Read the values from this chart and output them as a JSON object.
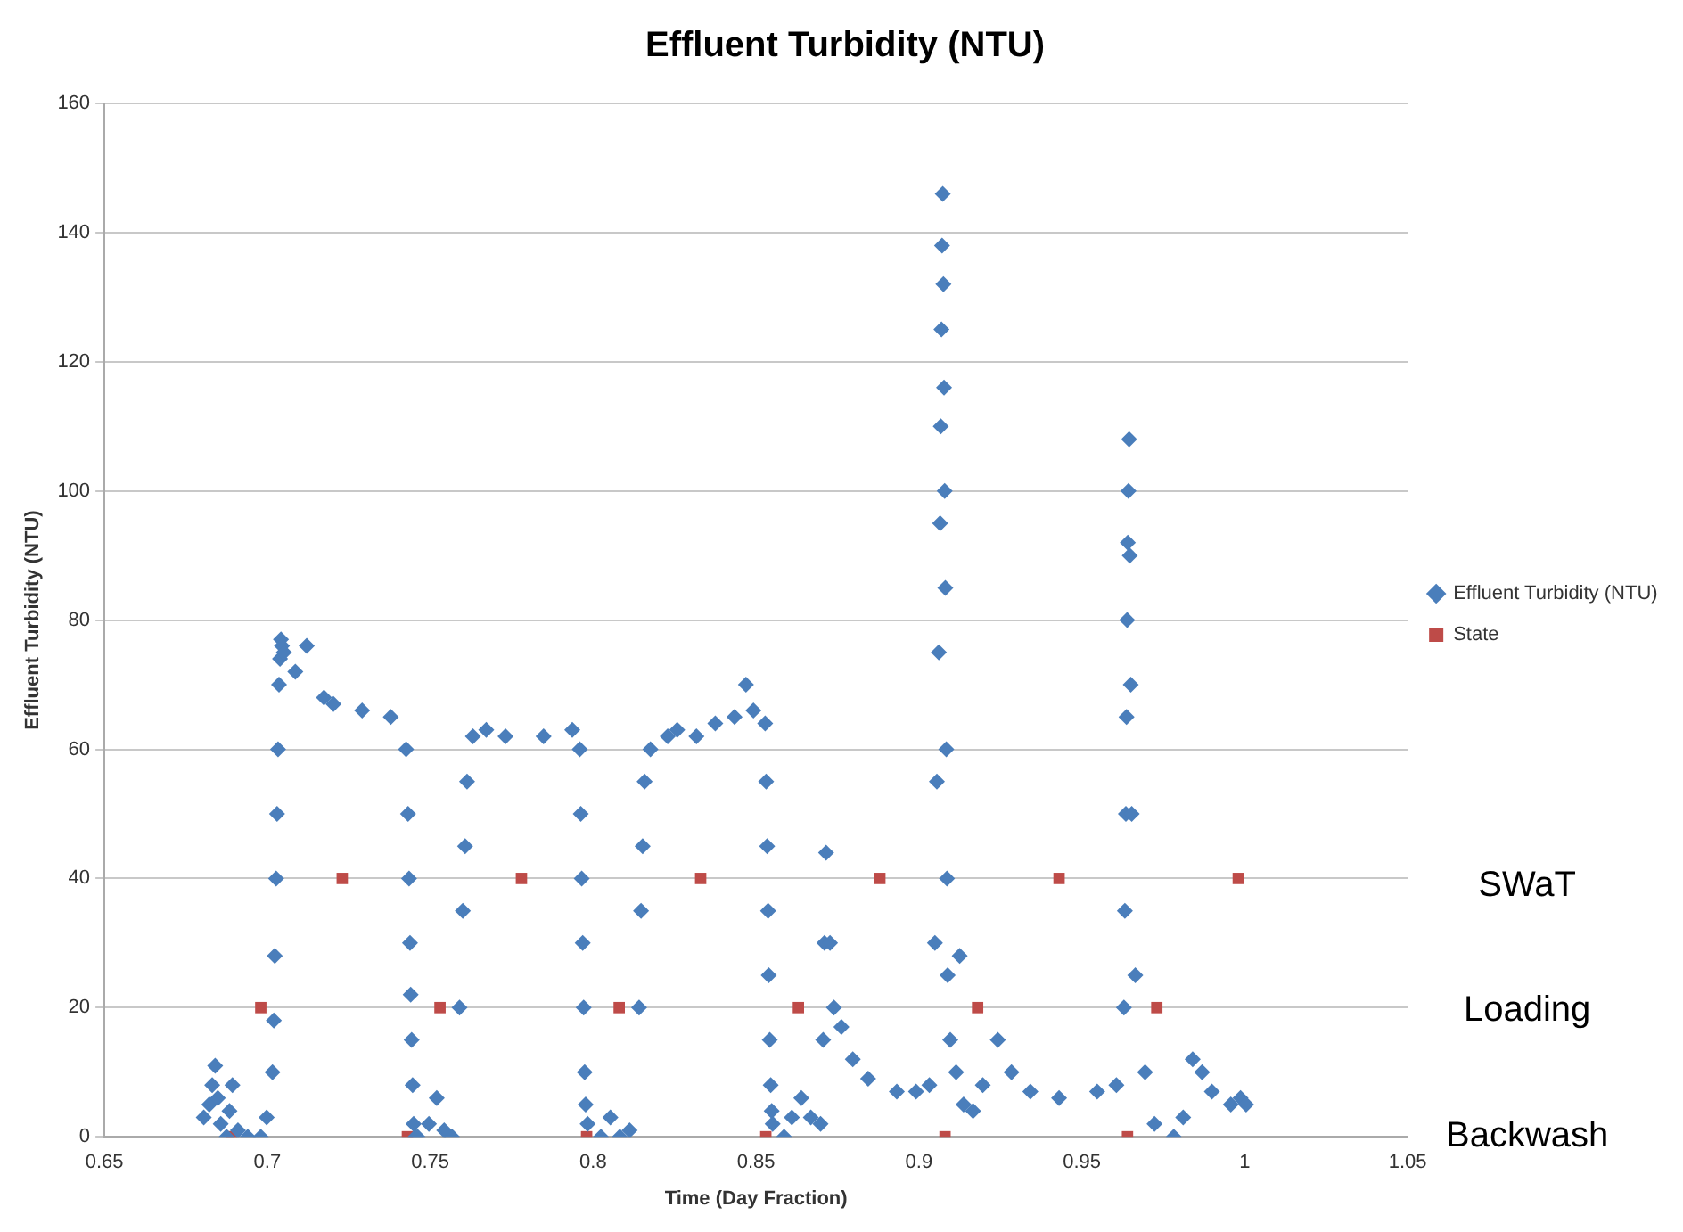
{
  "chart_data": {
    "type": "scatter",
    "title": "Effluent Turbidity (NTU)",
    "xlabel": "Time (Day Fraction)",
    "ylabel": "Effluent Turbidity (NTU)",
    "xlim": [
      0.65,
      1.05
    ],
    "xticks": [
      0.65,
      0.7,
      0.75,
      0.8,
      0.85,
      0.9,
      0.95,
      1,
      1.05
    ],
    "ylim": [
      0,
      160
    ],
    "yticks": [
      0,
      20,
      40,
      60,
      80,
      100,
      120,
      140,
      160
    ],
    "grid": "y",
    "legend": "right",
    "series": [
      {
        "name": "Effluent Turbidity (NTU)",
        "color": "#4a7ebb",
        "marker": "diamond",
        "x": [
          0.6805,
          0.6822,
          0.6831,
          0.684,
          0.6848,
          0.6857,
          0.6875,
          0.6884,
          0.6893,
          0.691,
          0.694,
          0.698,
          0.6998,
          0.7016,
          0.702,
          0.7023,
          0.7027,
          0.703,
          0.7033,
          0.7036,
          0.7039,
          0.7042,
          0.7045,
          0.7051,
          0.7086,
          0.7121,
          0.7174,
          0.7203,
          0.7291,
          0.7379,
          0.7426,
          0.7432,
          0.7435,
          0.7438,
          0.744,
          0.7443,
          0.7446,
          0.7449,
          0.7455,
          0.7461,
          0.7496,
          0.752,
          0.7543,
          0.7567,
          0.759,
          0.76,
          0.7607,
          0.7613,
          0.7631,
          0.7672,
          0.7731,
          0.7848,
          0.7936,
          0.7959,
          0.7962,
          0.7965,
          0.7968,
          0.7971,
          0.7974,
          0.7977,
          0.7983,
          0.8024,
          0.8053,
          0.8082,
          0.8112,
          0.8141,
          0.8147,
          0.8152,
          0.8158,
          0.8176,
          0.8229,
          0.8258,
          0.8317,
          0.8375,
          0.8434,
          0.8469,
          0.8492,
          0.8528,
          0.8531,
          0.8534,
          0.8537,
          0.8539,
          0.8542,
          0.8545,
          0.8548,
          0.8551,
          0.8586,
          0.861,
          0.8639,
          0.8668,
          0.8698,
          0.8706,
          0.871,
          0.8715,
          0.8727,
          0.8739,
          0.8762,
          0.8797,
          0.8844,
          0.8932,
          0.8991,
          0.9032,
          0.9049,
          0.9055,
          0.9061,
          0.9065,
          0.9067,
          0.9069,
          0.9071,
          0.9073,
          0.9075,
          0.9077,
          0.9079,
          0.9081,
          0.9084,
          0.9086,
          0.9088,
          0.9096,
          0.9114,
          0.9125,
          0.9137,
          0.9166,
          0.9196,
          0.9242,
          0.9284,
          0.9342,
          0.943,
          0.9547,
          0.9606,
          0.9629,
          0.9632,
          0.9635,
          0.9637,
          0.9639,
          0.9641,
          0.9643,
          0.9645,
          0.9647,
          0.965,
          0.9653,
          0.9664,
          0.9694,
          0.9723,
          0.9782,
          0.9811,
          0.984,
          0.9869,
          0.9899,
          0.9957,
          0.9987,
          1.0004
        ],
        "values": [
          3,
          5,
          8,
          11,
          6,
          2,
          0,
          4,
          8,
          1,
          0,
          0,
          3,
          10,
          18,
          28,
          40,
          50,
          60,
          70,
          74,
          77,
          76,
          75,
          72,
          76,
          68,
          67,
          66,
          65,
          60,
          50,
          40,
          30,
          22,
          15,
          8,
          2,
          0,
          0,
          2,
          6,
          1,
          0,
          20,
          35,
          45,
          55,
          62,
          63,
          62,
          62,
          63,
          60,
          50,
          40,
          30,
          20,
          10,
          5,
          2,
          0,
          3,
          0,
          1,
          20,
          35,
          45,
          55,
          60,
          62,
          63,
          62,
          64,
          65,
          70,
          66,
          64,
          55,
          45,
          35,
          25,
          15,
          8,
          4,
          2,
          0,
          3,
          6,
          3,
          2,
          15,
          30,
          44,
          30,
          20,
          17,
          12,
          9,
          7,
          7,
          8,
          30,
          55,
          75,
          95,
          110,
          125,
          138,
          146,
          132,
          116,
          100,
          85,
          60,
          40,
          25,
          15,
          10,
          28,
          5,
          4,
          8,
          15,
          10,
          7,
          6,
          7,
          8,
          20,
          35,
          50,
          65,
          80,
          92,
          100,
          108,
          90,
          70,
          50,
          25,
          10,
          2,
          0,
          3,
          12,
          10,
          7,
          5,
          6,
          5
        ]
      },
      {
        "name": "State",
        "color": "#be4b48",
        "marker": "square",
        "x": [
          0.689,
          0.698,
          0.723,
          0.743,
          0.753,
          0.778,
          0.798,
          0.808,
          0.833,
          0.853,
          0.863,
          0.888,
          0.908,
          0.918,
          0.943,
          0.964,
          0.973,
          0.998
        ],
        "values": [
          0,
          20,
          40,
          0,
          20,
          40,
          0,
          20,
          40,
          0,
          20,
          40,
          0,
          20,
          40,
          0,
          20,
          40
        ]
      }
    ],
    "annotations": [
      "SWaT",
      "Loading",
      "Backwash"
    ]
  }
}
